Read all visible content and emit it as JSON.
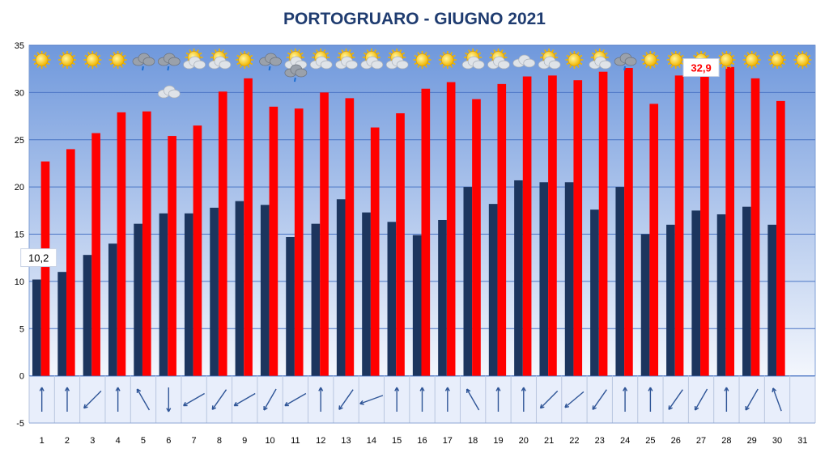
{
  "chart_data": {
    "type": "bar",
    "title": "PORTOGRUARO - GIUGNO 2021",
    "xlabel": "",
    "ylabel": "",
    "ylim": [
      -5,
      35
    ],
    "yticks": [
      -5,
      0,
      5,
      10,
      15,
      20,
      25,
      30,
      35
    ],
    "grid": true,
    "categories": [
      "1",
      "2",
      "3",
      "4",
      "5",
      "6",
      "7",
      "8",
      "9",
      "10",
      "11",
      "12",
      "13",
      "14",
      "15",
      "16",
      "17",
      "18",
      "19",
      "20",
      "21",
      "22",
      "23",
      "24",
      "25",
      "26",
      "27",
      "28",
      "29",
      "30",
      "31"
    ],
    "series": [
      {
        "color": "#1c355e",
        "values": [
          10.2,
          11.0,
          12.8,
          14.0,
          16.1,
          17.2,
          17.2,
          17.8,
          18.5,
          18.1,
          14.7,
          16.1,
          18.7,
          17.3,
          16.3,
          14.9,
          16.5,
          20.0,
          18.2,
          20.7,
          20.5,
          20.5,
          17.6,
          20.0,
          15.0,
          16.0,
          17.5,
          17.1,
          17.9,
          16.0,
          null
        ]
      },
      {
        "color": "#ff0000",
        "values": [
          22.7,
          24.0,
          25.7,
          27.9,
          28.0,
          25.4,
          26.5,
          30.1,
          31.5,
          28.5,
          28.3,
          30.0,
          29.4,
          26.3,
          27.8,
          30.4,
          31.1,
          29.3,
          30.9,
          31.7,
          31.8,
          31.3,
          32.2,
          32.6,
          28.8,
          31.8,
          32.9,
          32.7,
          31.5,
          29.1,
          null
        ]
      }
    ],
    "annotations": [
      {
        "text": "10,2",
        "day": 1,
        "series": 0,
        "color": "#000000"
      },
      {
        "text": "32,9",
        "day": 27,
        "series": 1,
        "color": "#ff0000"
      }
    ],
    "weather_icons": [
      "sun",
      "sun",
      "sun",
      "sun",
      "rain-cloud",
      "rain-cloud",
      "sun-cloud",
      "sun-cloud",
      "sun",
      "rain-cloud",
      "sun-cloud",
      "sun-cloud",
      "sun-cloud",
      "sun-cloud",
      "sun-cloud",
      "sun",
      "sun",
      "sun-cloud",
      "sun-cloud",
      "cloud",
      "sun-cloud",
      "sun",
      "sun-cloud",
      "rain-cloud",
      "sun",
      "sun",
      "sun",
      "sun",
      "sun",
      "sun",
      "sun"
    ],
    "extra_icons": [
      {
        "day": 6,
        "icon": "cloud"
      },
      {
        "day": 11,
        "icon": "rain-cloud"
      }
    ],
    "wind_arrows_deg": [
      0,
      0,
      225,
      0,
      330,
      180,
      240,
      215,
      240,
      210,
      240,
      0,
      215,
      250,
      0,
      0,
      0,
      330,
      0,
      0,
      225,
      230,
      215,
      0,
      0,
      215,
      210,
      0,
      210,
      340,
      null
    ],
    "colors": {
      "plot_top": "#6f98dc",
      "plot_bottom": "#f4f7fd",
      "wind_band": "#e8eefb",
      "title": "#1f3c70",
      "grid": "#4a74c4",
      "arrow": "#2f5597"
    }
  }
}
